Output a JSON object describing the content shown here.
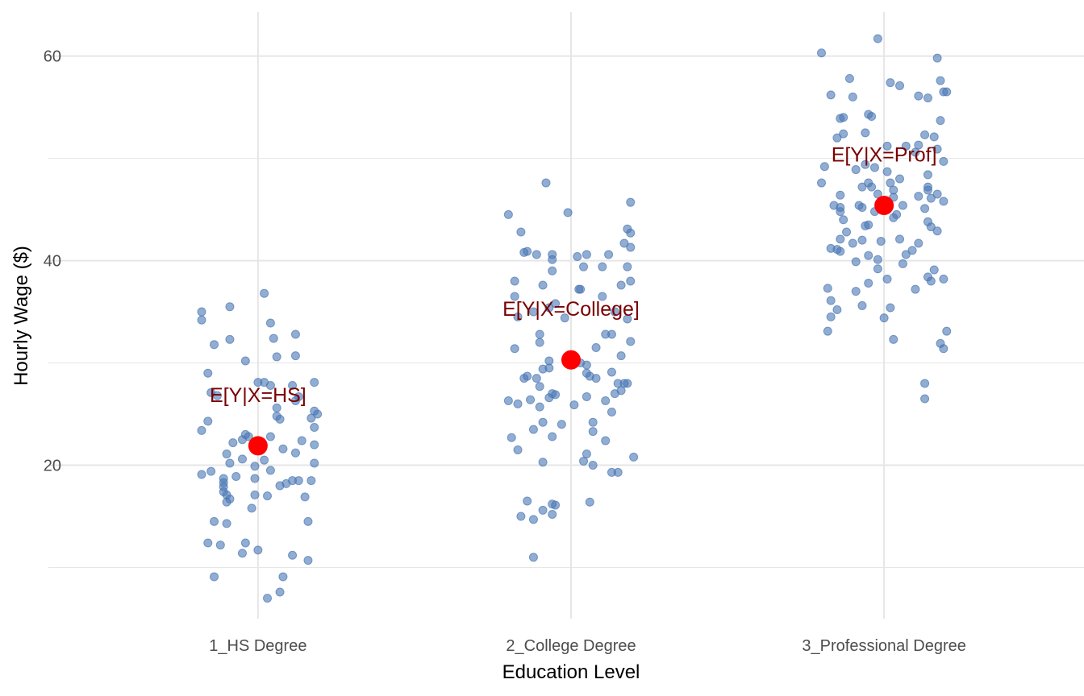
{
  "chart_data": {
    "type": "scatter",
    "title": "",
    "xlabel": "Education Level",
    "ylabel": "Hourly Wage ($)",
    "categories": [
      "1_HS Degree",
      "2_College Degree",
      "3_Professional Degree"
    ],
    "ylim": [
      5,
      64.3
    ],
    "xlim": [
      0.4,
      3.6
    ],
    "yticks": [
      20,
      40,
      60
    ],
    "y_minor_grid": [
      10,
      30,
      50
    ],
    "grid": true,
    "colors": {
      "points": "#4a77b4",
      "mean": "#ff0000",
      "annotation": "#7a0000",
      "grid": "#e6e6e6"
    },
    "means": [
      {
        "category": "1_HS Degree",
        "value": 21.9,
        "label": "E[Y|X=HS]"
      },
      {
        "category": "2_College Degree",
        "value": 30.3,
        "label": "E[Y|X=College]"
      },
      {
        "category": "3_Professional Degree",
        "value": 45.4,
        "label": "E[Y|X=Prof]"
      }
    ],
    "points_note": "each point is [jitter offset in category units, wage]",
    "points": [
      [
        [
          -0.18,
          35.0
        ],
        [
          -0.18,
          34.2
        ],
        [
          -0.09,
          35.5
        ],
        [
          0.02,
          36.8
        ],
        [
          -0.14,
          31.8
        ],
        [
          -0.09,
          32.3
        ],
        [
          0.04,
          33.9
        ],
        [
          0.05,
          32.4
        ],
        [
          0.12,
          32.8
        ],
        [
          -0.04,
          30.2
        ],
        [
          0.06,
          30.6
        ],
        [
          0.12,
          30.7
        ],
        [
          -0.16,
          29.0
        ],
        [
          0,
          28.1
        ],
        [
          0.02,
          28.1
        ],
        [
          0.04,
          27.8
        ],
        [
          0.11,
          27.8
        ],
        [
          0.18,
          28.1
        ],
        [
          -0.15,
          27.1
        ],
        [
          -0.13,
          26.8
        ],
        [
          0.13,
          26.7
        ],
        [
          0.12,
          26.3
        ],
        [
          0.06,
          25.6
        ],
        [
          0.18,
          25.3
        ],
        [
          0.19,
          25.0
        ],
        [
          0.06,
          24.8
        ],
        [
          0.07,
          24.5
        ],
        [
          0.17,
          24.6
        ],
        [
          -0.16,
          24.3
        ],
        [
          0.18,
          23.7
        ],
        [
          -0.18,
          23.4
        ],
        [
          -0.04,
          23.0
        ],
        [
          -0.03,
          22.8
        ],
        [
          -0.05,
          22.5
        ],
        [
          0.04,
          22.8
        ],
        [
          -0.08,
          22.2
        ],
        [
          0.14,
          22.4
        ],
        [
          0.18,
          22.0
        ],
        [
          0.08,
          21.6
        ],
        [
          -0.1,
          21.1
        ],
        [
          0.12,
          21.2
        ],
        [
          -0.05,
          20.6
        ],
        [
          0.02,
          20.5
        ],
        [
          -0.09,
          20.2
        ],
        [
          0.18,
          20.2
        ],
        [
          -0.01,
          19.9
        ],
        [
          0.04,
          19.5
        ],
        [
          -0.15,
          19.4
        ],
        [
          -0.18,
          19.1
        ],
        [
          -0.07,
          18.9
        ],
        [
          -0.01,
          18.7
        ],
        [
          -0.11,
          18.7
        ],
        [
          -0.11,
          18.3
        ],
        [
          0.11,
          18.5
        ],
        [
          0.13,
          18.5
        ],
        [
          0.17,
          18.5
        ],
        [
          0.09,
          18.2
        ],
        [
          0.07,
          18.0
        ],
        [
          -0.11,
          17.9
        ],
        [
          -0.11,
          17.4
        ],
        [
          -0.1,
          17.1
        ],
        [
          -0.01,
          17.1
        ],
        [
          0.03,
          17.0
        ],
        [
          -0.09,
          16.7
        ],
        [
          -0.1,
          16.4
        ],
        [
          0.15,
          16.9
        ],
        [
          -0.02,
          15.8
        ],
        [
          -0.14,
          14.5
        ],
        [
          -0.1,
          14.3
        ],
        [
          0.16,
          14.5
        ],
        [
          -0.16,
          12.4
        ],
        [
          -0.12,
          12.2
        ],
        [
          -0.04,
          12.4
        ],
        [
          -0.05,
          11.4
        ],
        [
          0,
          11.7
        ],
        [
          0.11,
          11.2
        ],
        [
          0.16,
          10.7
        ],
        [
          -0.14,
          9.1
        ],
        [
          0.08,
          9.1
        ],
        [
          0.07,
          7.6
        ],
        [
          0.03,
          7.0
        ]
      ],
      [
        [
          -0.08,
          47.6
        ],
        [
          0.19,
          45.7
        ],
        [
          -0.2,
          44.5
        ],
        [
          -0.01,
          44.7
        ],
        [
          0.18,
          43.1
        ],
        [
          0.19,
          42.7
        ],
        [
          -0.16,
          42.8
        ],
        [
          0.17,
          41.7
        ],
        [
          0.19,
          41.3
        ],
        [
          -0.15,
          40.8
        ],
        [
          -0.14,
          40.9
        ],
        [
          -0.11,
          40.6
        ],
        [
          -0.06,
          40.6
        ],
        [
          0.02,
          40.4
        ],
        [
          0.05,
          40.6
        ],
        [
          0.12,
          40.6
        ],
        [
          -0.06,
          40.1
        ],
        [
          0.04,
          39.4
        ],
        [
          0.1,
          39.4
        ],
        [
          0.18,
          39.4
        ],
        [
          -0.06,
          39.0
        ],
        [
          -0.18,
          38.0
        ],
        [
          0.19,
          38.0
        ],
        [
          -0.09,
          37.6
        ],
        [
          0.16,
          37.6
        ],
        [
          0.025,
          37.2
        ],
        [
          0.03,
          37.2
        ],
        [
          0.1,
          36.5
        ],
        [
          -0.18,
          36.5
        ],
        [
          -0.05,
          35.8
        ],
        [
          -0.12,
          35.0
        ],
        [
          -0.07,
          35.4
        ],
        [
          0.14,
          35.0
        ],
        [
          -0.02,
          34.4
        ],
        [
          -0.17,
          34.5
        ],
        [
          0.18,
          34.3
        ],
        [
          -0.1,
          32.8
        ],
        [
          0.11,
          32.8
        ],
        [
          0.13,
          32.8
        ],
        [
          0.19,
          32.1
        ],
        [
          -0.1,
          32.0
        ],
        [
          -0.18,
          31.4
        ],
        [
          0.08,
          31.5
        ],
        [
          0.16,
          30.7
        ],
        [
          -0.07,
          30.2
        ],
        [
          0.03,
          30.0
        ],
        [
          0.05,
          29.8
        ],
        [
          -0.07,
          29.5
        ],
        [
          -0.09,
          29.4
        ],
        [
          0.05,
          29.0
        ],
        [
          0.13,
          29.1
        ],
        [
          0.06,
          28.7
        ],
        [
          0.08,
          28.5
        ],
        [
          -0.14,
          28.7
        ],
        [
          -0.15,
          28.5
        ],
        [
          -0.11,
          28.5
        ],
        [
          0.15,
          28.0
        ],
        [
          0.17,
          28.0
        ],
        [
          0.18,
          28.0
        ],
        [
          -0.1,
          27.7
        ],
        [
          0.16,
          27.3
        ],
        [
          -0.06,
          27.0
        ],
        [
          0.14,
          27.0
        ],
        [
          -0.05,
          26.9
        ],
        [
          -0.07,
          26.6
        ],
        [
          0.05,
          26.7
        ],
        [
          -0.2,
          26.3
        ],
        [
          -0.13,
          26.4
        ],
        [
          0.11,
          26.3
        ],
        [
          -0.17,
          26.0
        ],
        [
          0.01,
          25.9
        ],
        [
          -0.1,
          25.7
        ],
        [
          0.13,
          25.2
        ],
        [
          0.07,
          24.2
        ],
        [
          -0.09,
          24.2
        ],
        [
          -0.03,
          24.0
        ],
        [
          -0.12,
          23.5
        ],
        [
          0.07,
          23.3
        ],
        [
          -0.06,
          22.8
        ],
        [
          -0.19,
          22.7
        ],
        [
          0.11,
          22.4
        ],
        [
          -0.17,
          21.5
        ],
        [
          0.05,
          21.1
        ],
        [
          0.2,
          20.8
        ],
        [
          0.04,
          20.4
        ],
        [
          -0.09,
          20.3
        ],
        [
          0.07,
          20.0
        ],
        [
          0.13,
          19.3
        ],
        [
          0.15,
          19.3
        ],
        [
          -0.14,
          16.5
        ],
        [
          0.06,
          16.4
        ],
        [
          -0.06,
          16.2
        ],
        [
          -0.05,
          16.1
        ],
        [
          -0.09,
          15.6
        ],
        [
          -0.16,
          15.0
        ],
        [
          -0.06,
          15.2
        ],
        [
          -0.12,
          14.7
        ],
        [
          -0.12,
          11.0
        ]
      ],
      [
        [
          -0.02,
          61.7
        ],
        [
          -0.2,
          60.3
        ],
        [
          0.17,
          59.8
        ],
        [
          -0.11,
          57.8
        ],
        [
          0.18,
          57.6
        ],
        [
          0.02,
          57.4
        ],
        [
          0.05,
          57.1
        ],
        [
          0.19,
          56.5
        ],
        [
          0.2,
          56.5
        ],
        [
          -0.17,
          56.2
        ],
        [
          0.11,
          56.1
        ],
        [
          0.14,
          55.9
        ],
        [
          -0.1,
          56.0
        ],
        [
          -0.05,
          54.3
        ],
        [
          -0.04,
          54.1
        ],
        [
          -0.13,
          54.0
        ],
        [
          -0.14,
          53.9
        ],
        [
          0.18,
          53.7
        ],
        [
          -0.06,
          52.5
        ],
        [
          -0.13,
          52.4
        ],
        [
          -0.15,
          52.0
        ],
        [
          0.13,
          52.3
        ],
        [
          0.16,
          52.1
        ],
        [
          0.11,
          51.3
        ],
        [
          0.01,
          51.2
        ],
        [
          0.07,
          51.2
        ],
        [
          0.1,
          50.6
        ],
        [
          0.17,
          50.9
        ],
        [
          0.19,
          49.7
        ],
        [
          -0.19,
          49.2
        ],
        [
          -0.06,
          49.4
        ],
        [
          -0.03,
          49.1
        ],
        [
          -0.09,
          48.9
        ],
        [
          0.01,
          48.7
        ],
        [
          0.14,
          48.4
        ],
        [
          0.05,
          48.0
        ],
        [
          -0.2,
          47.6
        ],
        [
          0.02,
          47.6
        ],
        [
          -0.05,
          47.6
        ],
        [
          -0.04,
          47.2
        ],
        [
          -0.07,
          47.2
        ],
        [
          0.14,
          47.2
        ],
        [
          0.14,
          46.9
        ],
        [
          0.03,
          46.9
        ],
        [
          -0.02,
          46.5
        ],
        [
          0.17,
          46.5
        ],
        [
          -0.14,
          46.4
        ],
        [
          0.11,
          46.3
        ],
        [
          0.03,
          46.2
        ],
        [
          0.15,
          46.1
        ],
        [
          0.19,
          45.8
        ],
        [
          -0.16,
          45.4
        ],
        [
          -0.08,
          45.4
        ],
        [
          0.06,
          45.4
        ],
        [
          -0.14,
          45.2
        ],
        [
          -0.07,
          45.2
        ],
        [
          0.13,
          45.1
        ],
        [
          -0.03,
          44.8
        ],
        [
          -0.14,
          44.8
        ],
        [
          0.04,
          44.5
        ],
        [
          0.03,
          44.2
        ],
        [
          -0.13,
          44.0
        ],
        [
          -0.05,
          43.5
        ],
        [
          -0.06,
          43.4
        ],
        [
          0.14,
          43.8
        ],
        [
          0.15,
          43.3
        ],
        [
          0.17,
          42.9
        ],
        [
          -0.12,
          42.8
        ],
        [
          -0.14,
          42.1
        ],
        [
          0.05,
          42.1
        ],
        [
          -0.1,
          41.7
        ],
        [
          -0.07,
          42.0
        ],
        [
          -0.01,
          41.9
        ],
        [
          0.11,
          41.7
        ],
        [
          -0.17,
          41.2
        ],
        [
          -0.15,
          41.1
        ],
        [
          -0.14,
          40.9
        ],
        [
          0.09,
          41.0
        ],
        [
          0.07,
          40.6
        ],
        [
          -0.05,
          40.5
        ],
        [
          -0.02,
          40.1
        ],
        [
          -0.09,
          39.9
        ],
        [
          0.06,
          39.7
        ],
        [
          -0.02,
          39.2
        ],
        [
          0.16,
          39.1
        ],
        [
          0.14,
          38.4
        ],
        [
          0.01,
          38.2
        ],
        [
          0.15,
          38.0
        ],
        [
          0.19,
          38.2
        ],
        [
          -0.05,
          37.8
        ],
        [
          -0.18,
          37.3
        ],
        [
          0.1,
          37.2
        ],
        [
          -0.09,
          37.0
        ],
        [
          -0.17,
          36.1
        ],
        [
          -0.07,
          35.6
        ],
        [
          0.02,
          35.4
        ],
        [
          -0.15,
          35.2
        ],
        [
          -0.17,
          34.5
        ],
        [
          0,
          34.4
        ],
        [
          0.2,
          33.1
        ],
        [
          -0.18,
          33.1
        ],
        [
          0.03,
          32.3
        ],
        [
          0.18,
          31.9
        ],
        [
          0.19,
          31.4
        ],
        [
          0.13,
          28.0
        ],
        [
          0.13,
          26.5
        ]
      ]
    ]
  }
}
